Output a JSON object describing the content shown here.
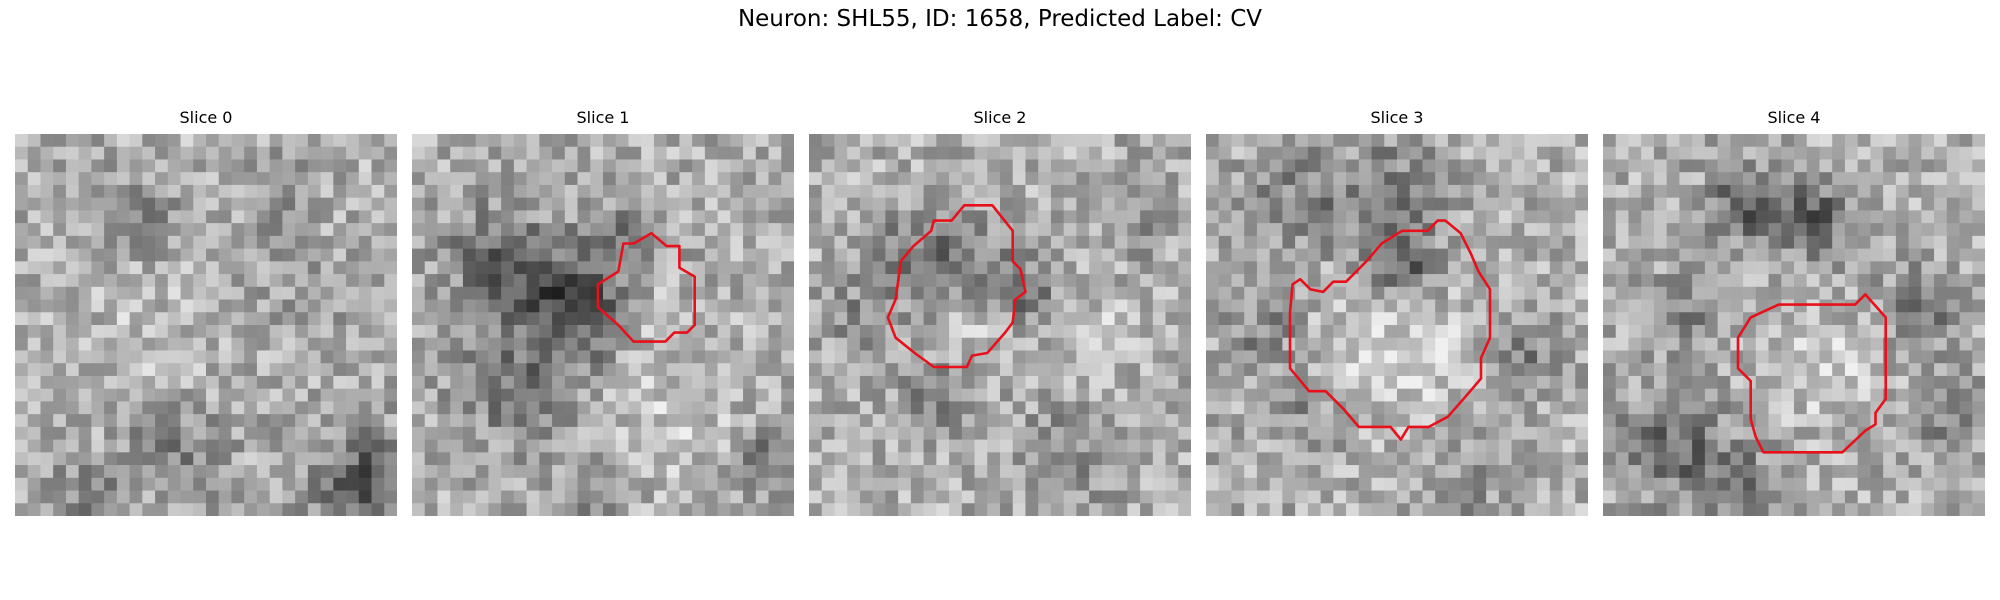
{
  "figure": {
    "title": "Neuron: SHL55, ID: 1658, Predicted Label: CV",
    "colormap": "gray",
    "contour_color": "#e8101a",
    "panels": [
      {
        "label": "Slice 0",
        "has_contour": false
      },
      {
        "label": "Slice 1",
        "has_contour": true
      },
      {
        "label": "Slice 2",
        "has_contour": true
      },
      {
        "label": "Slice 3",
        "has_contour": true
      },
      {
        "label": "Slice 4",
        "has_contour": true
      }
    ]
  }
}
